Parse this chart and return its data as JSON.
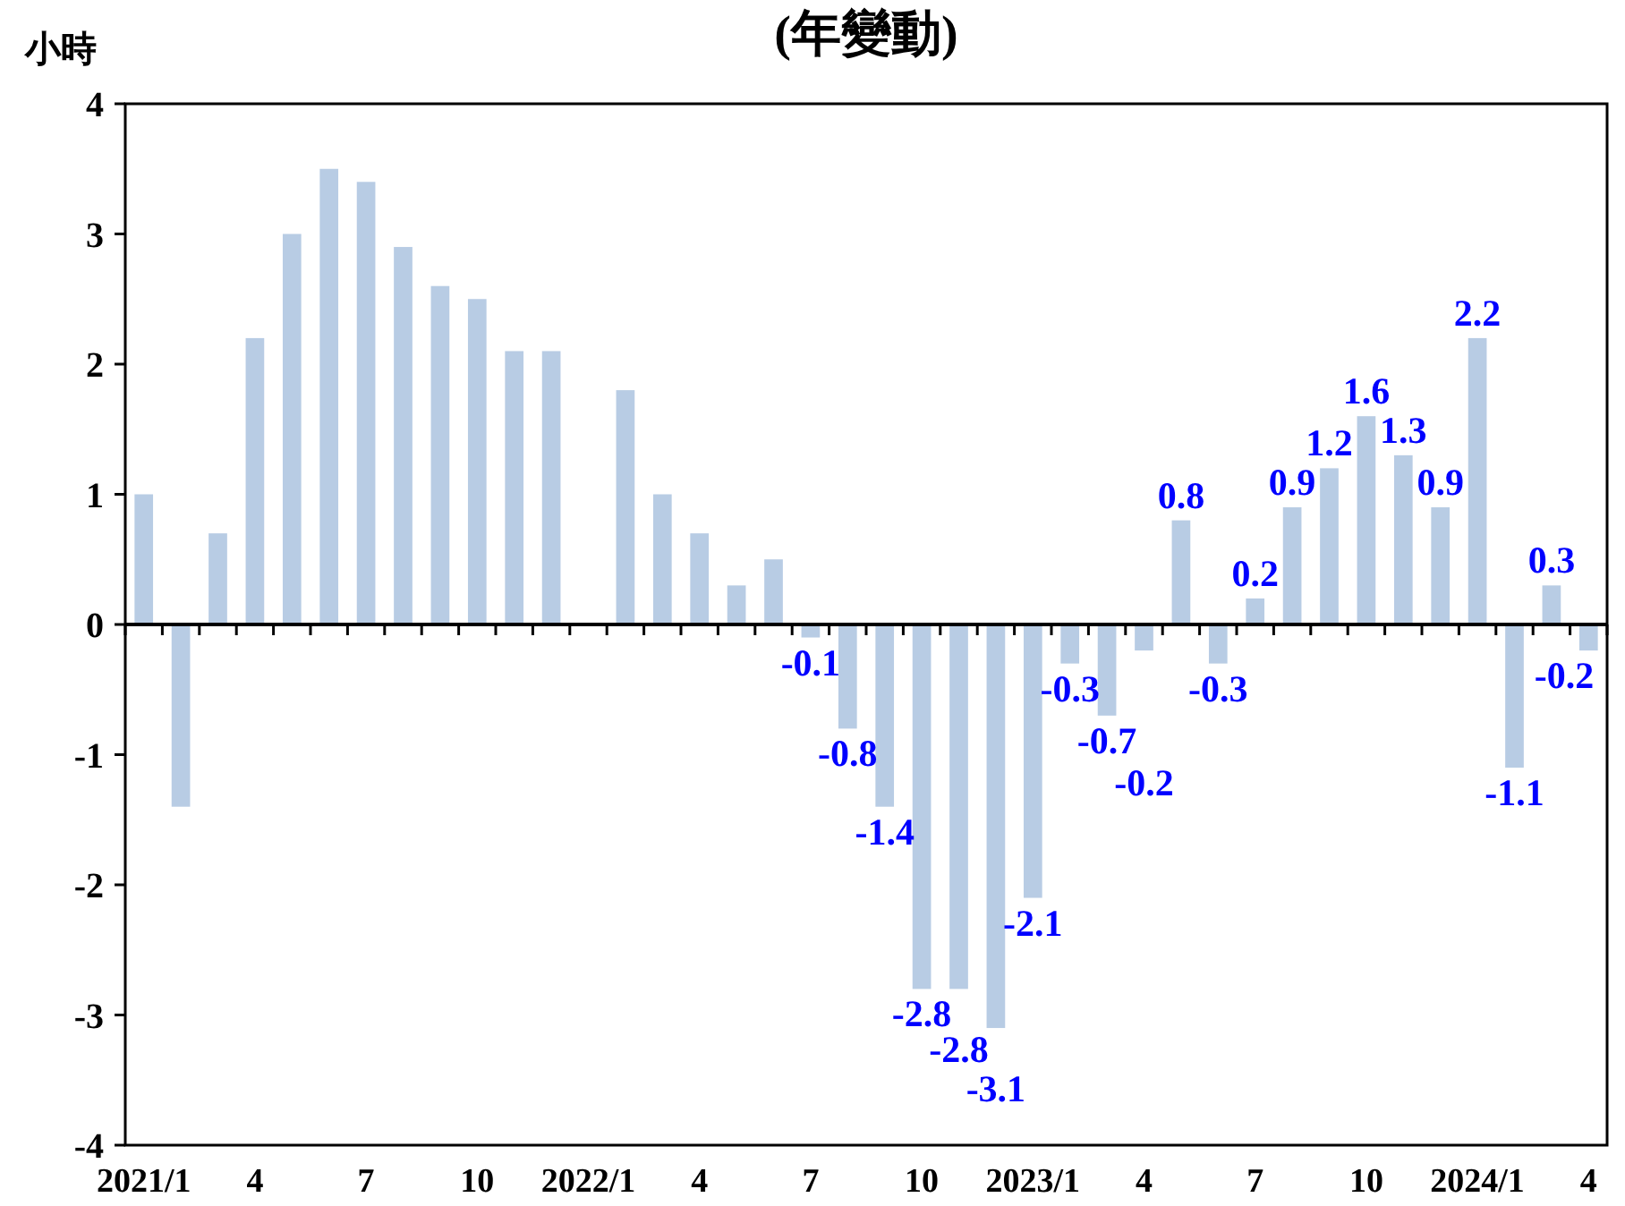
{
  "chart_data": {
    "type": "bar",
    "title": "(年變動)",
    "ylabel": "小時",
    "categories": [
      "2021/1",
      null,
      null,
      "4",
      null,
      null,
      "7",
      null,
      null,
      "10",
      null,
      null,
      "2022/1",
      null,
      null,
      "4",
      null,
      null,
      "7",
      null,
      null,
      "10",
      null,
      null,
      "2023/1",
      null,
      null,
      "4",
      null,
      null,
      "7",
      null,
      null,
      "10",
      null,
      null,
      "2024/1",
      null,
      null,
      "4"
    ],
    "values": [
      1.0,
      -1.4,
      0.7,
      2.2,
      3.0,
      3.5,
      3.4,
      2.9,
      2.6,
      2.5,
      2.1,
      2.1,
      0,
      1.8,
      1.0,
      0.7,
      0.3,
      0.5,
      -0.1,
      -0.8,
      -1.4,
      -2.8,
      -2.8,
      -3.1,
      -2.1,
      -0.3,
      -0.7,
      -0.2,
      0.8,
      -0.3,
      0.2,
      0.9,
      1.2,
      1.6,
      1.3,
      0.9,
      2.2,
      -1.1,
      0.3,
      -0.2
    ],
    "value_labels": [
      null,
      null,
      null,
      null,
      null,
      null,
      null,
      null,
      null,
      null,
      null,
      null,
      null,
      null,
      null,
      null,
      null,
      null,
      "-0.1",
      "-0.8",
      "-1.4",
      "-2.8",
      "-2.8",
      "-3.1",
      "-2.1",
      "-0.3",
      "-0.7",
      "-0.2",
      "0.8",
      "-0.3",
      "0.2",
      "0.9",
      "1.2",
      "1.6",
      "1.3",
      "0.9",
      "2.2",
      "-1.1",
      "0.3",
      "-0.2"
    ],
    "color": "#b8cce4",
    "ylim": [
      -4,
      4
    ],
    "yticks": [
      -4,
      -3,
      -2,
      -1,
      0,
      1,
      2,
      3,
      4
    ]
  }
}
